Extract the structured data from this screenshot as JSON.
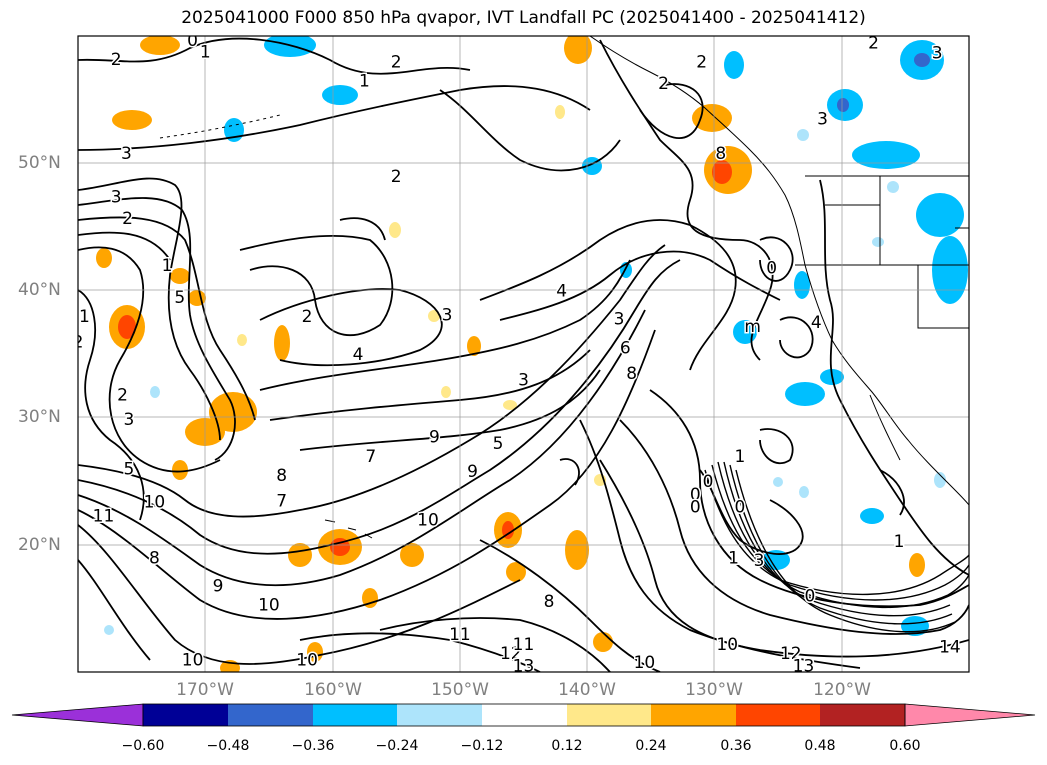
{
  "title": "2025041000 F000 850 hPa qvapor, IVT Landfall PC (2025041400 - 2025041412)",
  "axes": {
    "lat_labels": [
      "50°N",
      "40°N",
      "30°N",
      "20°N"
    ],
    "lon_labels": [
      "170°W",
      "160°W",
      "150°W",
      "140°W",
      "130°W",
      "120°W"
    ],
    "lat_range": [
      10,
      60
    ],
    "lon_range": [
      -180,
      -110
    ],
    "grid": true
  },
  "colorbar": {
    "ticks": [
      "−0.60",
      "−0.48",
      "−0.36",
      "−0.24",
      "−0.12",
      "0.12",
      "0.24",
      "0.36",
      "0.48",
      "0.60"
    ],
    "colors": [
      "#9b30d9",
      "#000096",
      "#3366cc",
      "#00bfff",
      "#ade4fb",
      "#ffffff",
      "#ffe88a",
      "#ffa500",
      "#ff4500",
      "#b22222",
      "#ff88aa"
    ],
    "extend": "both"
  },
  "contour_labels": [
    {
      "text": "3",
      "lon": -176.2,
      "lat": 50.8
    },
    {
      "text": "3",
      "lon": -177.0,
      "lat": 47.4
    },
    {
      "text": "2",
      "lon": -176.1,
      "lat": 45.7
    },
    {
      "text": "1",
      "lon": -173.0,
      "lat": 42.0
    },
    {
      "text": "5",
      "lon": -172.0,
      "lat": 39.5
    },
    {
      "text": "2",
      "lon": -176.5,
      "lat": 31.8
    },
    {
      "text": "3",
      "lon": -176.0,
      "lat": 29.9
    },
    {
      "text": "5",
      "lon": -176.0,
      "lat": 26.0
    },
    {
      "text": "11",
      "lon": -178.0,
      "lat": 22.3
    },
    {
      "text": "10",
      "lon": -174.0,
      "lat": 23.4
    },
    {
      "text": "8",
      "lon": -174.0,
      "lat": 19.0
    },
    {
      "text": "9",
      "lon": -169.0,
      "lat": 16.8
    },
    {
      "text": "10",
      "lon": -165.0,
      "lat": 15.3
    },
    {
      "text": "10",
      "lon": -171.0,
      "lat": 11.0
    },
    {
      "text": "10",
      "lon": -162.0,
      "lat": 11.0
    },
    {
      "text": "7",
      "lon": -164.0,
      "lat": 23.5
    },
    {
      "text": "8",
      "lon": -164.0,
      "lat": 25.5
    },
    {
      "text": "9",
      "lon": -152.0,
      "lat": 28.5
    },
    {
      "text": "10",
      "lon": -152.5,
      "lat": 22.0
    },
    {
      "text": "7",
      "lon": -157.0,
      "lat": 27.0
    },
    {
      "text": "5",
      "lon": -147.0,
      "lat": 28.0
    },
    {
      "text": "4",
      "lon": -158.0,
      "lat": 35.0
    },
    {
      "text": "2",
      "lon": -162.0,
      "lat": 38.0
    },
    {
      "text": "3",
      "lon": -151.0,
      "lat": 38.1
    },
    {
      "text": "2",
      "lon": -155.0,
      "lat": 49.0
    },
    {
      "text": "1",
      "lon": -157.5,
      "lat": 56.5
    },
    {
      "text": "2",
      "lon": -155.0,
      "lat": 58.0
    },
    {
      "text": "4",
      "lon": -142.0,
      "lat": 40.0
    },
    {
      "text": "3",
      "lon": -145.0,
      "lat": 33.0
    },
    {
      "text": "3",
      "lon": -137.5,
      "lat": 37.8
    },
    {
      "text": "6",
      "lon": -137.0,
      "lat": 35.5
    },
    {
      "text": "8",
      "lon": -136.5,
      "lat": 33.5
    },
    {
      "text": "9",
      "lon": -149.0,
      "lat": 25.8
    },
    {
      "text": "8",
      "lon": -143.0,
      "lat": 15.6
    },
    {
      "text": "11",
      "lon": -150.0,
      "lat": 13.0
    },
    {
      "text": "12",
      "lon": -146.0,
      "lat": 11.5
    },
    {
      "text": "13",
      "lon": -145.0,
      "lat": 10.5
    },
    {
      "text": "11",
      "lon": -145.0,
      "lat": 12.2
    },
    {
      "text": "10",
      "lon": -129.0,
      "lat": 12.2
    },
    {
      "text": "12",
      "lon": -124.0,
      "lat": 11.5
    },
    {
      "text": "13",
      "lon": -123.0,
      "lat": 10.5
    },
    {
      "text": "10",
      "lon": -135.5,
      "lat": 10.8
    },
    {
      "text": "1",
      "lon": -128.0,
      "lat": 27.0
    },
    {
      "text": "0",
      "lon": -130.5,
      "lat": 25.0
    },
    {
      "text": "0",
      "lon": -131.5,
      "lat": 24.0
    },
    {
      "text": "0",
      "lon": -131.5,
      "lat": 23.0
    },
    {
      "text": "0",
      "lon": -128.0,
      "lat": 23.0
    },
    {
      "text": "1",
      "lon": -128.5,
      "lat": 19.0
    },
    {
      "text": "3",
      "lon": -126.5,
      "lat": 18.8
    },
    {
      "text": "0",
      "lon": -122.5,
      "lat": 16.0
    },
    {
      "text": "14",
      "lon": -111.5,
      "lat": 12.0
    },
    {
      "text": "1",
      "lon": -115.5,
      "lat": 20.3
    },
    {
      "text": "4",
      "lon": -122.0,
      "lat": 37.5
    },
    {
      "text": "m",
      "lon": -127.0,
      "lat": 37.2
    },
    {
      "text": "0",
      "lon": -125.5,
      "lat": 41.8
    },
    {
      "text": "2",
      "lon": -131.0,
      "lat": 58.0
    },
    {
      "text": "2",
      "lon": -117.5,
      "lat": 59.5
    },
    {
      "text": "3",
      "lon": -112.5,
      "lat": 58.7
    },
    {
      "text": "3",
      "lon": -121.5,
      "lat": 53.5
    },
    {
      "text": "2",
      "lon": -134.0,
      "lat": 56.3
    },
    {
      "text": "8",
      "lon": -129.5,
      "lat": 50.8
    },
    {
      "text": "2",
      "lon": -177.0,
      "lat": 58.2
    },
    {
      "text": "0",
      "lon": -171.0,
      "lat": 59.7
    },
    {
      "text": "1",
      "lon": -170.0,
      "lat": 58.8
    },
    {
      "text": "1",
      "lon": -179.5,
      "lat": 38.0
    },
    {
      "text": "2",
      "lon": -180.0,
      "lat": 36.0
    }
  ]
}
